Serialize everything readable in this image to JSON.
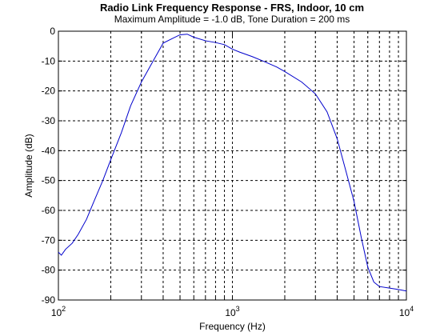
{
  "chart_data": {
    "type": "line",
    "title": "Radio Link Frequency Response - FRS, Indoor, 10 cm",
    "subtitle": "Maximum Amplitude = -1.0 dB, Tone Duration = 200 ms",
    "xlabel": "Frequency (Hz)",
    "ylabel": "Amplitude (dB)",
    "xscale": "log",
    "xlim": [
      100,
      10000
    ],
    "ylim": [
      -90,
      0
    ],
    "grid": true,
    "x_tick_labels": [
      {
        "base": "10",
        "exp": "2"
      },
      {
        "base": "10",
        "exp": "3"
      },
      {
        "base": "10",
        "exp": "4"
      }
    ],
    "y_ticks": [
      0,
      -10,
      -20,
      -30,
      -40,
      -50,
      -60,
      -70,
      -80,
      -90
    ],
    "y_tick_labels": [
      "0",
      "-10",
      "-20",
      "-30",
      "-40",
      "-50",
      "-60",
      "-70",
      "-80",
      "-90"
    ],
    "series": [
      {
        "color": "#0000cc",
        "x": [
          100,
          104,
          110,
          120,
          130,
          145,
          160,
          180,
          200,
          230,
          260,
          300,
          350,
          400,
          450,
          500,
          550,
          600,
          700,
          800,
          900,
          1000,
          1100,
          1300,
          1500,
          1800,
          2000,
          2500,
          3000,
          3500,
          4000,
          4500,
          5000,
          5500,
          6000,
          6500,
          7000,
          8000,
          9000,
          10000
        ],
        "y": [
          -74,
          -75,
          -73,
          -71,
          -68,
          -63,
          -57,
          -50,
          -43,
          -34,
          -25,
          -17,
          -10,
          -4,
          -2.5,
          -1.2,
          -1.0,
          -2,
          -3.2,
          -3.8,
          -4.5,
          -6,
          -7,
          -8.5,
          -10,
          -12,
          -13.5,
          -17,
          -21,
          -27,
          -36,
          -47,
          -57,
          -69,
          -79,
          -84,
          -85.5,
          -86,
          -86.5,
          -87
        ]
      }
    ]
  }
}
